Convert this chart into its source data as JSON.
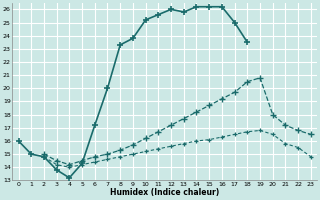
{
  "xlabel": "Humidex (Indice chaleur)",
  "bg_color": "#cce8e5",
  "grid_color": "#ffffff",
  "line_color": "#1a6b6b",
  "xlim": [
    -0.5,
    23.5
  ],
  "ylim": [
    13,
    26.5
  ],
  "xticks": [
    0,
    1,
    2,
    3,
    4,
    5,
    6,
    7,
    8,
    9,
    10,
    11,
    12,
    13,
    14,
    15,
    16,
    17,
    18,
    19,
    20,
    21,
    22,
    23
  ],
  "yticks": [
    13,
    14,
    15,
    16,
    17,
    18,
    19,
    20,
    21,
    22,
    23,
    24,
    25,
    26
  ],
  "curve1_x": [
    0,
    1,
    2,
    3,
    4,
    5,
    6,
    7,
    8,
    9,
    10,
    11,
    12,
    13,
    14,
    15,
    16,
    17,
    18
  ],
  "curve1_y": [
    16.0,
    15.0,
    14.8,
    13.8,
    13.2,
    14.3,
    17.2,
    20.0,
    23.3,
    23.8,
    25.2,
    25.6,
    26.0,
    25.8,
    26.2,
    26.2,
    26.2,
    25.0,
    23.5
  ],
  "curve2_x": [
    2,
    3,
    4,
    5,
    6,
    7,
    8,
    9,
    10,
    11,
    12,
    13,
    14,
    15,
    16,
    17,
    18,
    19,
    20,
    21,
    22,
    23
  ],
  "curve2_y": [
    15.0,
    14.5,
    14.2,
    14.5,
    14.8,
    15.0,
    15.3,
    15.7,
    16.2,
    16.7,
    17.2,
    17.7,
    18.2,
    18.7,
    19.2,
    19.7,
    20.5,
    20.8,
    18.0,
    17.2,
    16.8,
    16.5
  ],
  "curve3_x": [
    2,
    3,
    4,
    5,
    6,
    7,
    8,
    9,
    10,
    11,
    12,
    13,
    14,
    15,
    16,
    17,
    18,
    19,
    20,
    21,
    22,
    23
  ],
  "curve3_y": [
    14.8,
    14.2,
    14.0,
    14.2,
    14.4,
    14.6,
    14.8,
    15.0,
    15.2,
    15.4,
    15.6,
    15.8,
    16.0,
    16.1,
    16.3,
    16.5,
    16.7,
    16.8,
    16.5,
    15.8,
    15.5,
    14.8
  ]
}
